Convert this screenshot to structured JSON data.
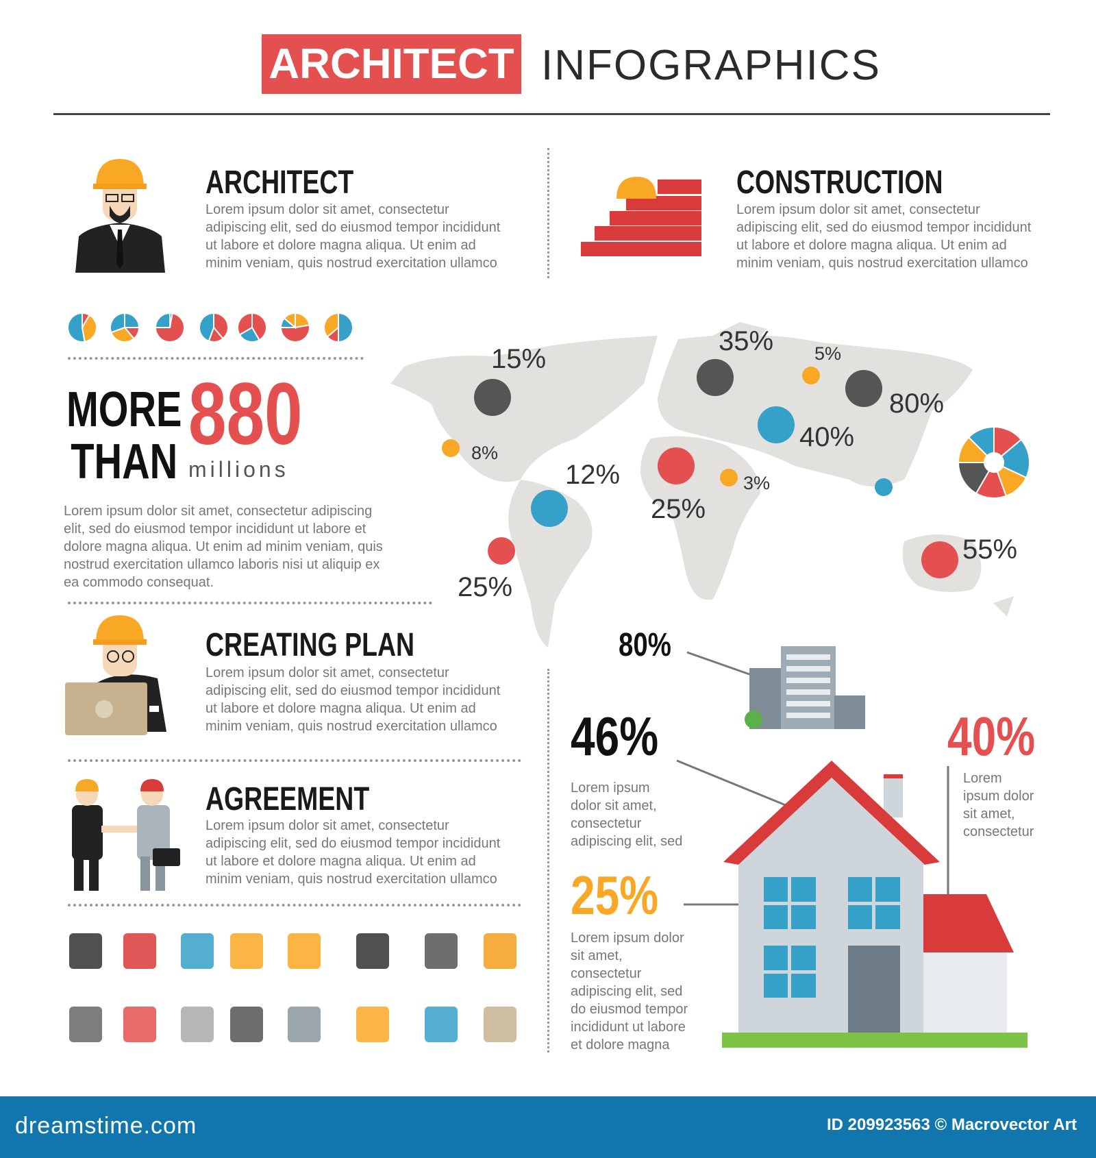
{
  "header": {
    "title_highlight": "ARCHITECT",
    "title_rest": "INFOGRAPHICS",
    "accent": "#e4504f"
  },
  "sections": {
    "architect": {
      "title": "ARCHITECT",
      "lines": [
        "Lorem ipsum dolor sit amet, consectetur",
        "adipiscing elit, sed do eiusmod tempor incididunt",
        "ut labore et dolore magna aliqua. Ut enim ad",
        "minim veniam, quis nostrud exercitation ullamco"
      ]
    },
    "construction": {
      "title": "CONSTRUCTION",
      "lines": [
        "Lorem ipsum dolor sit amet, consectetur",
        "adipiscing elit, sed do eiusmod tempor incididunt",
        "ut labore et dolore magna aliqua. Ut enim ad",
        "minim veniam, quis nostrud exercitation ullamco"
      ]
    },
    "creating_plan": {
      "title": "CREATING PLAN",
      "lines": [
        "Lorem ipsum dolor sit amet, consectetur",
        "adipiscing elit, sed do eiusmod tempor incididunt",
        "ut labore et dolore magna aliqua. Ut enim ad",
        "minim veniam, quis nostrud exercitation ullamco"
      ]
    },
    "agreement": {
      "title": "AGREEMENT",
      "lines": [
        "Lorem ipsum dolor sit amet, consectetur",
        "adipiscing elit, sed do eiusmod tempor incididunt",
        "ut labore et dolore magna aliqua. Ut enim ad",
        "minim veniam, quis nostrud exercitation ullamco"
      ]
    }
  },
  "stat": {
    "prefix_1": "MORE",
    "prefix_2": "THAN",
    "number": "880",
    "unit": "millions",
    "lines": [
      "Lorem ipsum dolor sit amet, consectetur adipiscing",
      "elit, sed do eiusmod tempor incididunt ut labore et",
      "dolore magna aliqua. Ut enim ad minim veniam, quis",
      "nostrud exercitation ullamco laboris nisi ut aliquip ex",
      "ea commodo consequat."
    ]
  },
  "colors": {
    "red": "#e4504f",
    "blue": "#35a0c8",
    "orange": "#f9a825",
    "dark": "#555555",
    "map": "#e2e1dd"
  },
  "map_labels": [
    {
      "label": "15%",
      "color": "dark"
    },
    {
      "label": "8%",
      "color": "orange"
    },
    {
      "label": "12%",
      "color": "blue"
    },
    {
      "label": "25%",
      "color": "red"
    },
    {
      "label": "25%",
      "color": "red"
    },
    {
      "label": "3%",
      "color": "orange"
    },
    {
      "label": "35%",
      "color": "dark"
    },
    {
      "label": "5%",
      "color": "orange"
    },
    {
      "label": "80%",
      "color": "dark"
    },
    {
      "label": "40%",
      "color": "blue"
    },
    {
      "label": "",
      "color": "blue"
    },
    {
      "label": "55%",
      "color": "red"
    }
  ],
  "building_stats": {
    "s80": {
      "value": "80%"
    },
    "s46": {
      "value": "46%",
      "lines": [
        "Lorem ipsum",
        "dolor sit amet,",
        "consectetur",
        "adipiscing elit, sed"
      ]
    },
    "s40": {
      "value": "40%",
      "lines": [
        "Lorem",
        "ipsum dolor",
        "sit amet,",
        "consectetur"
      ]
    },
    "s25": {
      "value": "25%",
      "lines": [
        "Lorem ipsum dolor",
        "sit amet,",
        "consectetur",
        "adipiscing elit, sed",
        "do eiusmod tempor",
        "incididunt ut labore",
        "et dolore magna"
      ]
    }
  },
  "icons": [
    "architect-icon",
    "bricks-icon",
    "house-icon",
    "worker-icon",
    "tape-measure-icon",
    "handshake-icon",
    "laptop-cad-icon",
    "paint-brush-icon",
    "crane-icon",
    "color-swatch-icon",
    "blueprint-icon",
    "compass-icon",
    "buildings-icon",
    "hard-hat-icon",
    "ruler-triangle-icon",
    "engineer-laptop-icon"
  ],
  "footer": {
    "logo": "dreamstime.com",
    "credit": "ID 209923563 © Macrovector Art"
  }
}
